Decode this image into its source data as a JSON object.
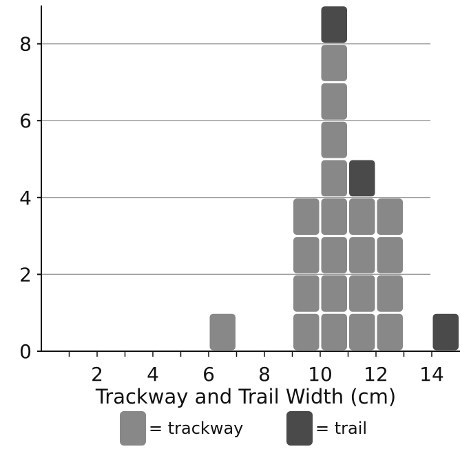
{
  "chart_data": {
    "type": "bar",
    "subtype": "stacked-dot-histogram",
    "xlabel": "Trackway and Trail Width (cm)",
    "ylabel": "",
    "xlim": [
      0,
      14.5
    ],
    "ylim": [
      0,
      9
    ],
    "xticks": [
      2,
      4,
      6,
      8,
      10,
      12,
      14
    ],
    "yticks": [
      0,
      2,
      4,
      6,
      8
    ],
    "grid": "horizontal",
    "categories": [
      6.5,
      9.5,
      10.5,
      11.5,
      12.5,
      14.5
    ],
    "series": [
      {
        "name": "trackway",
        "color": "#888888",
        "values": [
          1,
          4,
          8,
          4,
          4,
          0
        ]
      },
      {
        "name": "trail",
        "color": "#4a4a4a",
        "values": [
          0,
          0,
          1,
          1,
          0,
          1
        ]
      }
    ],
    "legend": {
      "placement": "bottom",
      "items": [
        {
          "label": "= trackway",
          "color": "#888888"
        },
        {
          "label": "= trail",
          "color": "#4a4a4a"
        }
      ]
    }
  }
}
